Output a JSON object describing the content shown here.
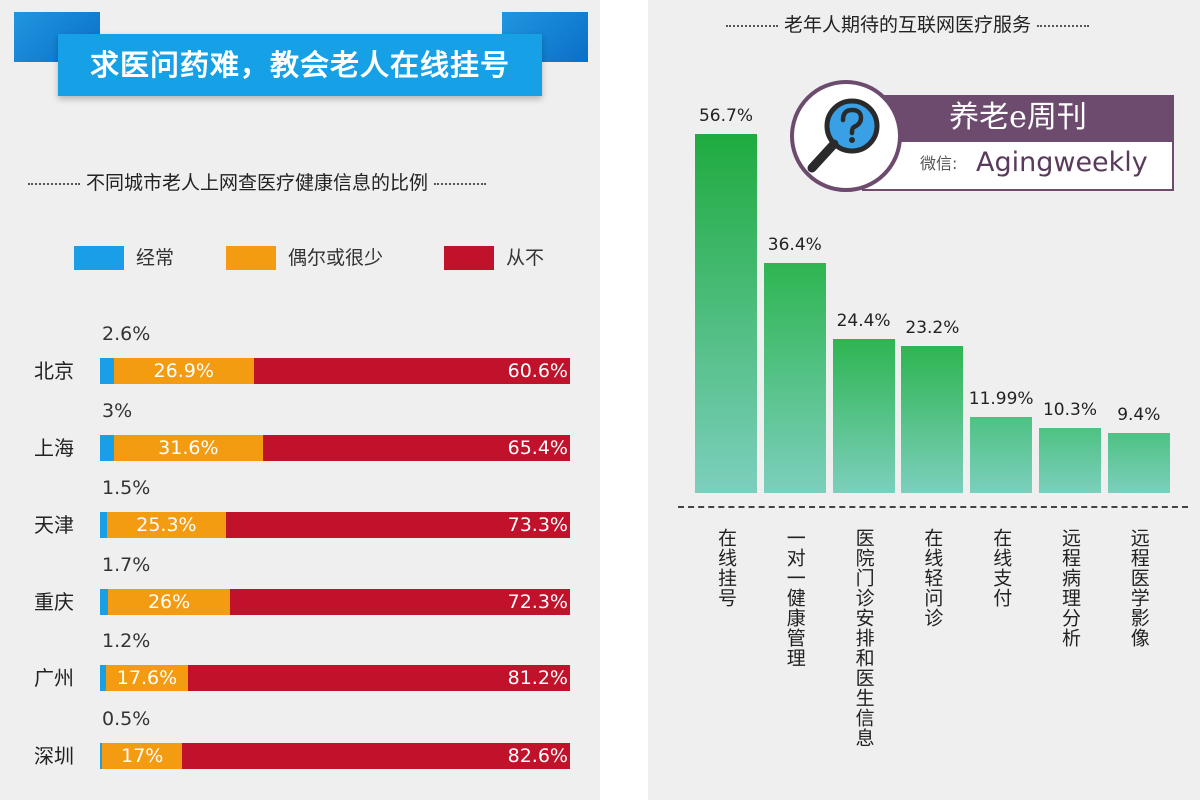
{
  "left": {
    "banner": "求医问药难，教会老人在线挂号",
    "chart_title": "不同城市老人上网查医疗健康信息的比例",
    "legend": [
      {
        "label": "经常",
        "color": "#1a9ee6"
      },
      {
        "label": "偶尔或很少",
        "color": "#f39c12"
      },
      {
        "label": "从不",
        "color": "#c0132b"
      }
    ]
  },
  "right": {
    "chart_title": "老年人期待的互联网医疗服务",
    "logo": {
      "name": "养老e周刊",
      "wechat_label": "微信:",
      "handle": "Agingweekly",
      "icon": "magnifier-question-icon"
    }
  },
  "chart_data": [
    {
      "type": "bar",
      "orientation": "horizontal-stacked",
      "title": "不同城市老人上网查医疗健康信息的比例",
      "categories": [
        "北京",
        "上海",
        "天津",
        "重庆",
        "广州",
        "深圳"
      ],
      "series": [
        {
          "name": "经常",
          "color": "#1a9ee6",
          "values": [
            2.6,
            3,
            1.5,
            1.7,
            1.2,
            0.5
          ],
          "labels": [
            "2.6%",
            "3%",
            "1.5%",
            "1.7%",
            "1.2%",
            "0.5%"
          ]
        },
        {
          "name": "偶尔或很少",
          "color": "#f39c12",
          "values": [
            26.9,
            31.6,
            25.3,
            26,
            17.6,
            17
          ],
          "labels": [
            "26.9%",
            "31.6%",
            "25.3%",
            "26%",
            "17.6%",
            "17%"
          ]
        },
        {
          "name": "从不",
          "color": "#c0132b",
          "values": [
            60.6,
            65.4,
            73.3,
            72.3,
            81.2,
            82.6
          ],
          "labels": [
            "60.6%",
            "65.4%",
            "73.3%",
            "72.3%",
            "81.2%",
            "82.6%"
          ]
        }
      ],
      "legend_position": "top"
    },
    {
      "type": "bar",
      "orientation": "vertical",
      "title": "老年人期待的互联网医疗服务",
      "categories": [
        "在线挂号",
        "一对一健康管理",
        "医院门诊安排和医生信息",
        "在线轻问诊",
        "在线支付",
        "远程病理分析",
        "远程医学影像"
      ],
      "values": [
        56.7,
        36.4,
        24.4,
        23.2,
        11.99,
        10.3,
        9.4
      ],
      "labels": [
        "56.7%",
        "36.4%",
        "24.4%",
        "23.2%",
        "11.99%",
        "10.3%",
        "9.4%"
      ],
      "ylim": [
        0,
        56.7
      ]
    }
  ]
}
